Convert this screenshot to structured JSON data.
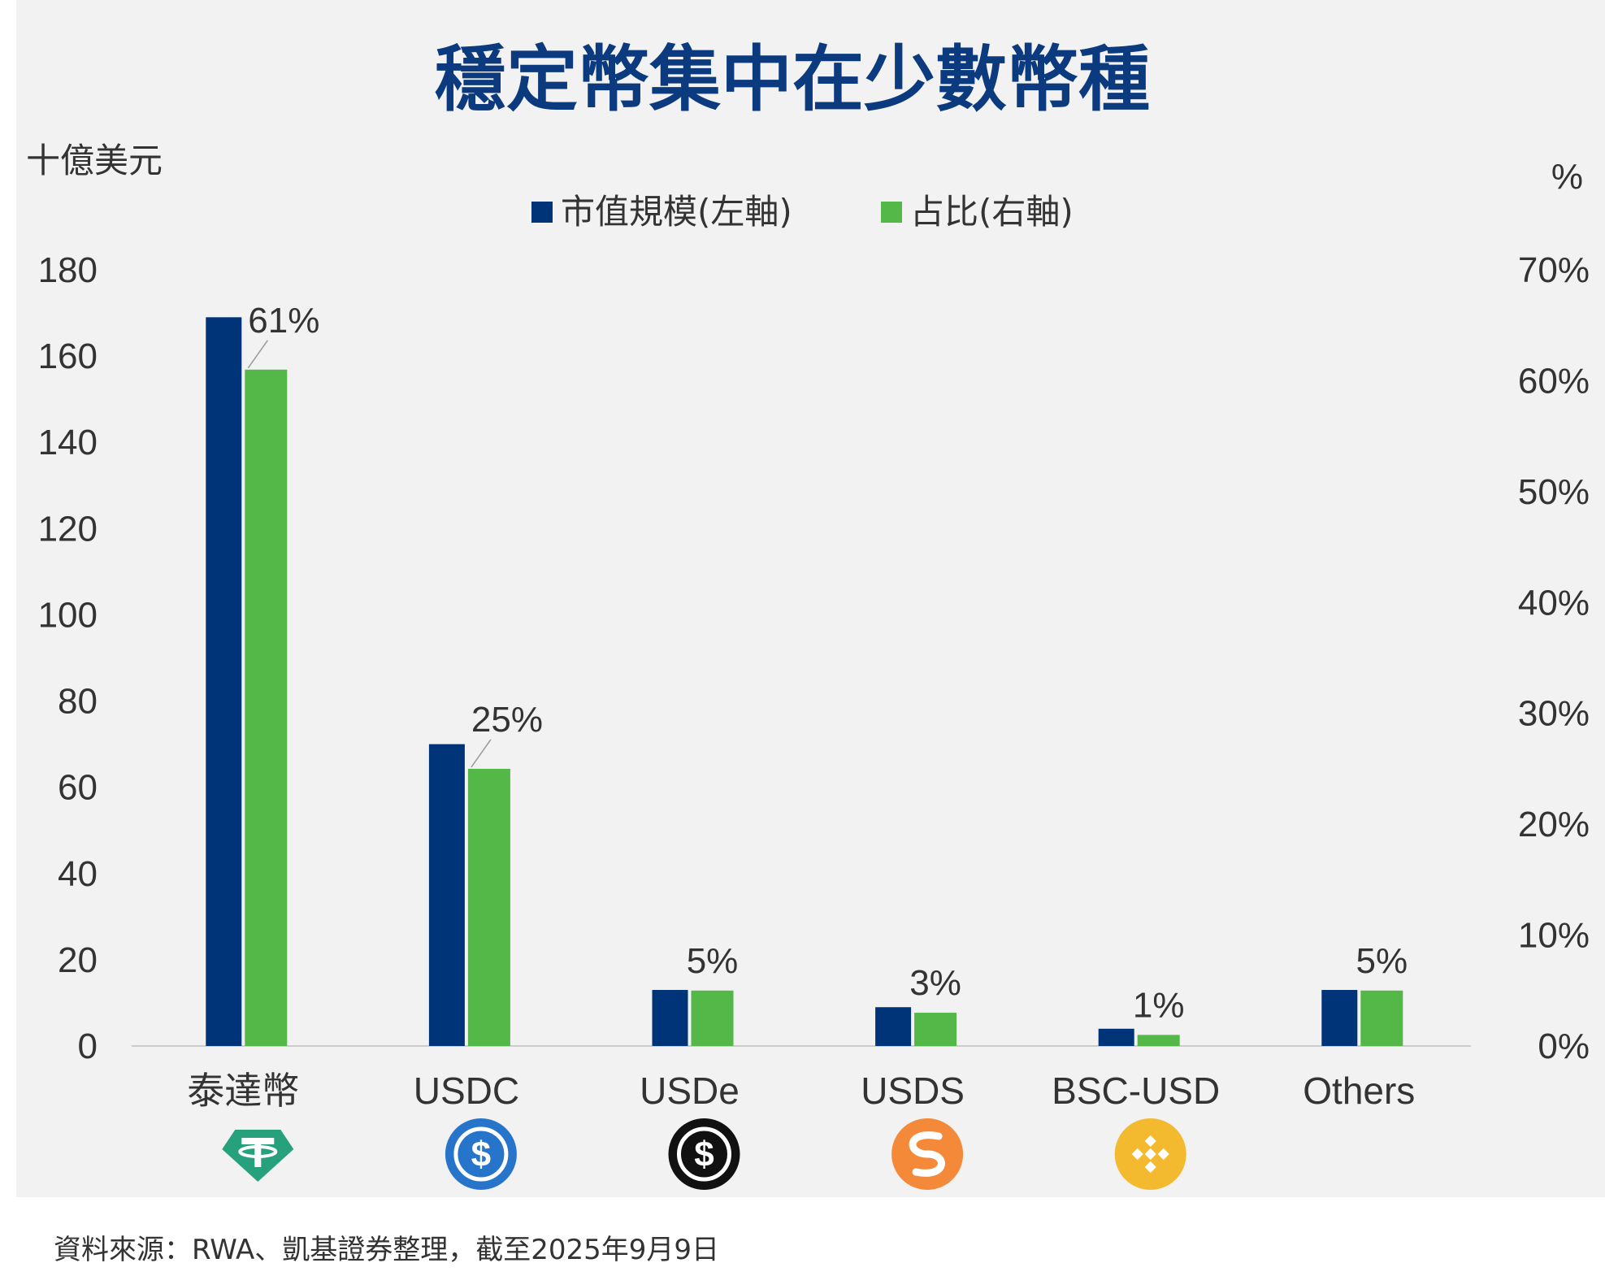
{
  "chart_data": {
    "type": "bar",
    "title": "穩定幣集中在少數幣種",
    "left_axis_unit": "十億美元",
    "right_axis_unit": "%",
    "categories": [
      "泰達幣",
      "USDC",
      "USDe",
      "USDS",
      "BSC-USD",
      "Others"
    ],
    "series": [
      {
        "name": "市值規模(左軸)",
        "axis": "left",
        "color": "#003478",
        "values": [
          169,
          70,
          13,
          9,
          4,
          13
        ]
      },
      {
        "name": "占比(右軸)",
        "axis": "right",
        "color": "#53b848",
        "values": [
          61,
          25,
          5,
          3,
          1,
          5
        ]
      }
    ],
    "data_labels": [
      "61%",
      "25%",
      "5%",
      "3%",
      "1%",
      "5%"
    ],
    "left_ylim": [
      0,
      180
    ],
    "left_ticks": [
      "0",
      "20",
      "40",
      "60",
      "80",
      "100",
      "120",
      "140",
      "160",
      "180"
    ],
    "right_ylim": [
      0,
      70
    ],
    "right_ticks": [
      "0%",
      "10%",
      "20%",
      "30%",
      "40%",
      "50%",
      "60%",
      "70%"
    ],
    "legend_position": "top-center",
    "grid": false
  },
  "logos": [
    {
      "category": "泰達幣",
      "icon": "tether-icon",
      "color": "#26a17b"
    },
    {
      "category": "USDC",
      "icon": "usdc-icon",
      "color": "#2775ca"
    },
    {
      "category": "USDe",
      "icon": "usde-icon",
      "color": "#111111"
    },
    {
      "category": "USDS",
      "icon": "usds-icon",
      "color": "#f5893a"
    },
    {
      "category": "BSC-USD",
      "icon": "binance-icon",
      "color": "#f3ba2f"
    }
  ],
  "source_note": "資料來源：RWA、凱基證券整理，截至2025年9月9日"
}
